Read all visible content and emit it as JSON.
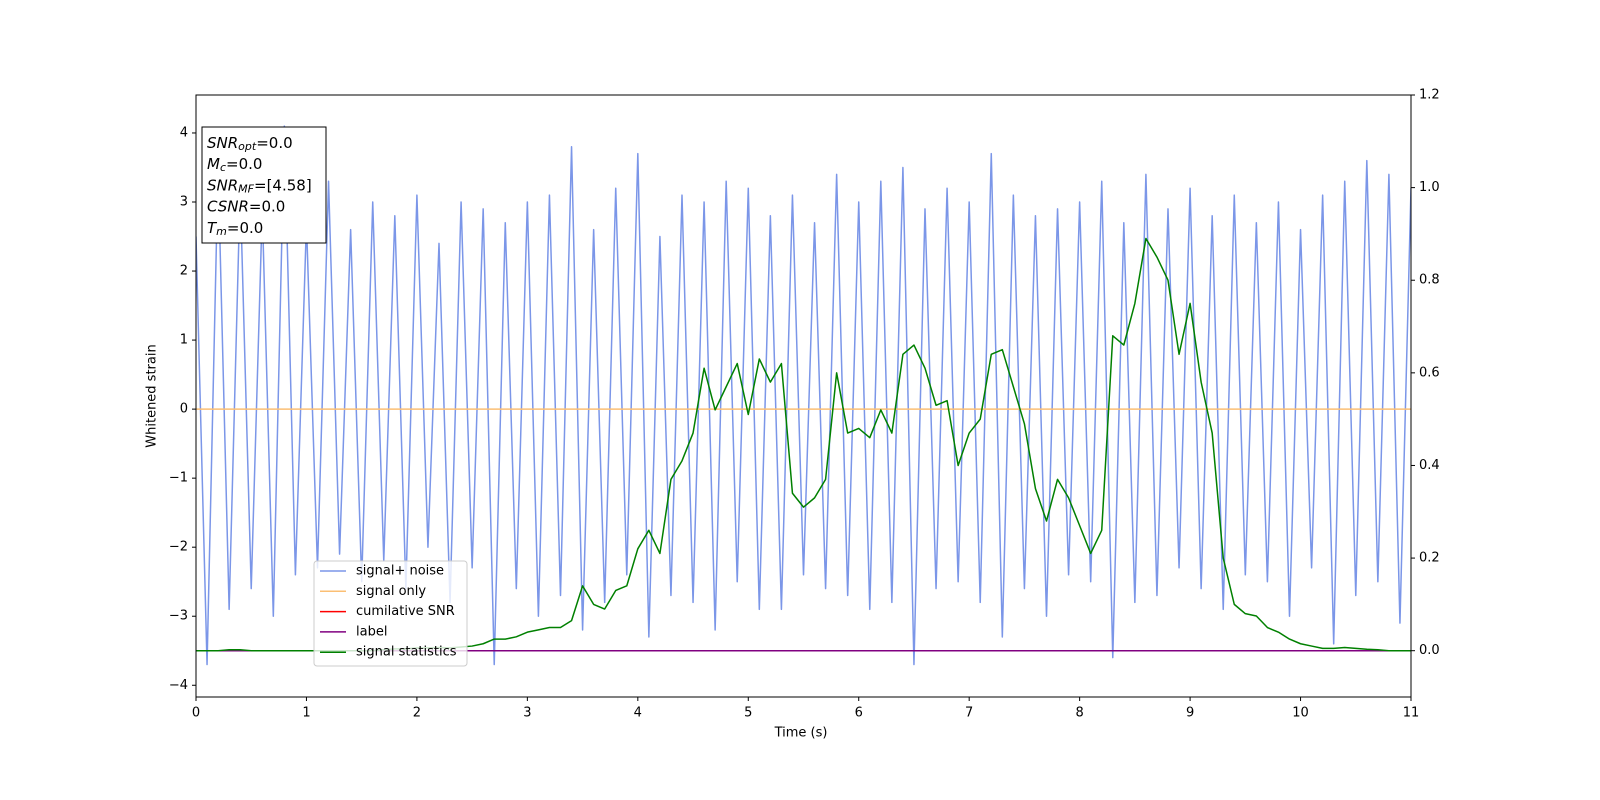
{
  "chart_data": {
    "type": "line",
    "xlabel": "Time (s)",
    "ylabel": "Whitened strain",
    "xlim": [
      0,
      11
    ],
    "ylim": [
      -4.17,
      4.55
    ],
    "y2lim": [
      -0.1,
      1.2
    ],
    "xticks": [
      0,
      1,
      2,
      3,
      4,
      5,
      6,
      7,
      8,
      9,
      10,
      11
    ],
    "yticks": [
      {
        "value": -4,
        "label": "−4"
      },
      {
        "value": -3,
        "label": "−3"
      },
      {
        "value": -2,
        "label": "−2"
      },
      {
        "value": -1,
        "label": "−1"
      },
      0,
      1,
      2,
      3,
      4
    ],
    "y2ticks": [
      {
        "value": 0,
        "label": "0.0"
      },
      0.2,
      0.4,
      0.6,
      0.8,
      {
        "value": 1,
        "label": "1.0"
      },
      1.2
    ],
    "x": [
      0,
      0.1,
      0.2,
      0.3,
      0.4,
      0.5,
      0.6,
      0.7,
      0.8,
      0.9,
      1,
      1.1,
      1.2,
      1.3,
      1.4,
      1.5,
      1.6,
      1.7,
      1.8,
      1.9,
      2,
      2.1,
      2.2,
      2.3,
      2.4,
      2.5,
      2.6,
      2.7,
      2.8,
      2.9,
      3,
      3.1,
      3.2,
      3.3,
      3.4,
      3.5,
      3.6,
      3.7,
      3.8,
      3.9,
      4,
      4.1,
      4.2,
      4.3,
      4.4,
      4.5,
      4.6,
      4.7,
      4.8,
      4.9,
      5,
      5.1,
      5.2,
      5.3,
      5.4,
      5.5,
      5.6,
      5.7,
      5.8,
      5.9,
      6,
      6.1,
      6.2,
      6.3,
      6.4,
      6.5,
      6.6,
      6.7,
      6.8,
      6.9,
      7,
      7.1,
      7.2,
      7.3,
      7.4,
      7.5,
      7.6,
      7.7,
      7.8,
      7.9,
      8,
      8.1,
      8.2,
      8.3,
      8.4,
      8.5,
      8.6,
      8.7,
      8.8,
      8.9,
      9,
      9.1,
      9.2,
      9.3,
      9.4,
      9.5,
      9.6,
      9.7,
      9.8,
      9.9,
      10,
      10.1,
      10.2,
      10.3,
      10.4,
      10.5,
      10.6,
      10.7,
      10.8,
      10.9,
      11
    ],
    "series": [
      {
        "name": "signal+ noise",
        "color": "#7b96e8",
        "values": [
          2.5,
          -3.7,
          3.5,
          -2.9,
          3.2,
          -2.6,
          2.9,
          -3.0,
          4.1,
          -2.4,
          2.7,
          -2.3,
          3.3,
          -2.1,
          2.6,
          -2.5,
          3.0,
          -2.2,
          2.8,
          -2.6,
          3.1,
          -2.0,
          2.4,
          -2.8,
          3.0,
          -2.3,
          2.9,
          -3.7,
          2.7,
          -2.6,
          3.0,
          -3.0,
          3.1,
          -2.7,
          3.8,
          -3.2,
          2.6,
          -2.8,
          3.2,
          -2.4,
          3.7,
          -3.3,
          2.5,
          -2.7,
          3.1,
          -2.8,
          3.0,
          -3.2,
          3.3,
          -2.5,
          3.2,
          -2.9,
          2.8,
          -2.9,
          3.1,
          -2.4,
          2.7,
          -2.6,
          3.4,
          -2.7,
          3.0,
          -2.9,
          3.3,
          -2.8,
          3.5,
          -3.7,
          2.9,
          -2.6,
          3.2,
          -2.5,
          3.0,
          -2.8,
          3.7,
          -3.3,
          3.1,
          -2.6,
          2.8,
          -3.0,
          2.9,
          -2.4,
          3.0,
          -2.5,
          3.3,
          -3.6,
          2.7,
          -2.8,
          3.4,
          -2.7,
          2.9,
          -2.3,
          3.2,
          -2.6,
          2.8,
          -2.9,
          3.1,
          -2.4,
          2.7,
          -2.5,
          3.0,
          -3.0,
          2.6,
          -2.3,
          3.1,
          -3.4,
          3.3,
          -2.7,
          3.6,
          -2.5,
          3.4,
          -3.1,
          3.2
        ]
      },
      {
        "name": "signal only",
        "color": "#fbbf74",
        "x": [
          0,
          11
        ],
        "values": [
          0,
          0
        ]
      },
      {
        "name": "cumilative SNR",
        "color": "#ff0000",
        "x": [],
        "values": []
      },
      {
        "name": "label",
        "color": "#800080",
        "axis": "y2",
        "x": [
          0,
          11
        ],
        "values": [
          0,
          0
        ]
      },
      {
        "name": "signal statistics",
        "color": "#008000",
        "axis": "y2",
        "values": [
          0,
          0,
          0,
          0.002,
          0.002,
          0,
          0,
          0,
          0,
          0,
          0,
          0,
          0,
          0,
          0,
          0,
          0,
          0.002,
          0.004,
          0.004,
          0.006,
          0.006,
          0.007,
          0.006,
          0.008,
          0.01,
          0.015,
          0.025,
          0.025,
          0.03,
          0.04,
          0.045,
          0.05,
          0.05,
          0.065,
          0.14,
          0.1,
          0.09,
          0.13,
          0.14,
          0.22,
          0.26,
          0.21,
          0.37,
          0.41,
          0.47,
          0.61,
          0.52,
          0.57,
          0.62,
          0.51,
          0.63,
          0.58,
          0.62,
          0.34,
          0.31,
          0.33,
          0.37,
          0.6,
          0.47,
          0.48,
          0.46,
          0.52,
          0.47,
          0.64,
          0.66,
          0.61,
          0.53,
          0.54,
          0.4,
          0.47,
          0.5,
          0.64,
          0.65,
          0.57,
          0.49,
          0.35,
          0.28,
          0.37,
          0.33,
          0.27,
          0.21,
          0.26,
          0.68,
          0.66,
          0.75,
          0.89,
          0.85,
          0.8,
          0.64,
          0.75,
          0.58,
          0.47,
          0.2,
          0.1,
          0.08,
          0.075,
          0.05,
          0.04,
          0.025,
          0.015,
          0.01,
          0.005,
          0.005,
          0.007,
          0.005,
          0.003,
          0.002,
          0,
          0,
          0
        ]
      }
    ],
    "annotation": [
      {
        "text": "SNR",
        "sub": "opt",
        "rest": "=0.0"
      },
      {
        "text": "M",
        "sub": "c",
        "rest": "=0.0"
      },
      {
        "text": "SNR",
        "sub": "MF",
        "rest": "=[4.58]"
      },
      {
        "text": "CSNR",
        "rest": "=0.0"
      },
      {
        "text": "T",
        "sub": "m",
        "rest": "=0.0"
      }
    ]
  }
}
